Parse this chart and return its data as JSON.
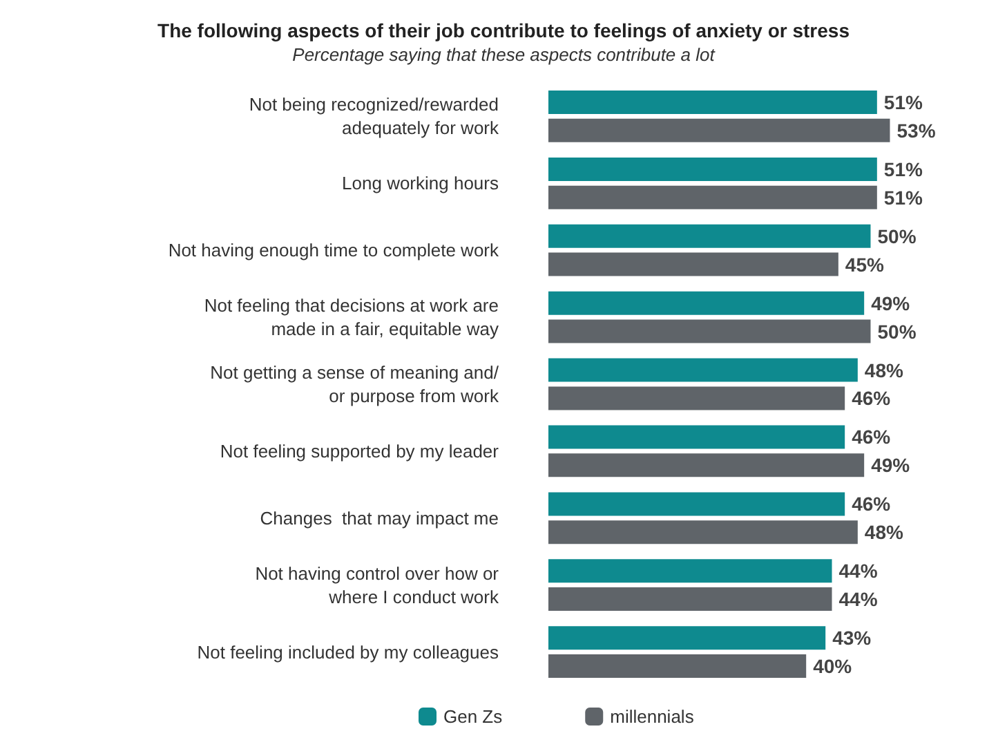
{
  "chart_data": {
    "type": "bar",
    "orientation": "horizontal",
    "title": "The following aspects of their job contribute to feelings of anxiety or stress",
    "subtitle": "Percentage saying that these aspects contribute a lot",
    "categories": [
      "Not being recognized/rewarded\nadequately for work",
      "Long working hours",
      "Not having enough time to complete work",
      "Not feeling that decisions at work are\nmade in a fair, equitable way",
      "Not getting a sense of meaning and/\nor purpose from work",
      "Not feeling supported by my leader",
      "Changes  that may impact me",
      "Not having control over how or\nwhere I conduct work",
      "Not feeling included by my colleagues"
    ],
    "series": [
      {
        "name": "Gen Zs",
        "color": "#0e8a8f",
        "values": [
          51,
          51,
          50,
          49,
          48,
          46,
          46,
          44,
          43
        ],
        "value_labels": [
          "51%",
          "51%",
          "50%",
          "49%",
          "48%",
          "46%",
          "46%",
          "44%",
          "43%"
        ]
      },
      {
        "name": "millennials",
        "color": "#5f6469",
        "values": [
          53,
          51,
          45,
          50,
          46,
          49,
          48,
          44,
          40
        ],
        "value_labels": [
          "53%",
          "51%",
          "45%",
          "50%",
          "46%",
          "49%",
          "48%",
          "44%",
          "40%"
        ]
      }
    ],
    "legend": "bottom"
  }
}
